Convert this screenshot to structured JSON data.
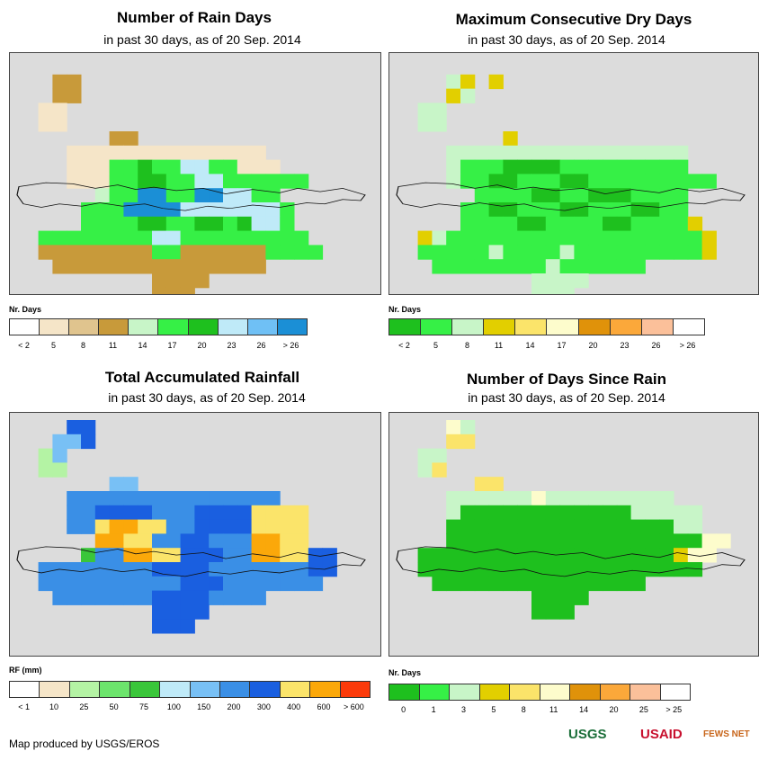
{
  "panels": [
    {
      "title": "Number of Rain Days",
      "subtitle": "in past 30 days, as of 20 Sep. 2014",
      "legend_title": "Nr. Days",
      "legend_colors": [
        "#ffffff",
        "#f5e5c8",
        "#e0c48e",
        "#c89a3a",
        "#c8f5c8",
        "#36f046",
        "#1ec01e",
        "#bfeaf8",
        "#6fc0f5",
        "#1b8fd6"
      ],
      "legend_labels": [
        "< 2",
        "5",
        "8",
        "11",
        "14",
        "17",
        "20",
        "23",
        "26",
        "> 26"
      ],
      "grid": [
        "..........................",
        "...bb.....................",
        "...bb.....................",
        "..aa......................",
        "..aa......................",
        ".......bb.................",
        "....aaaaaaaaaaaaaa........",
        "....aaaffgffhhffaaa.......",
        "....aaaffggffhhffffff.....",
        "......dffiiffiihhff.......",
        ".....fffiiiihhhhhhhf......",
        ".....ffffggffggfghhf......",
        "..ffffffffhhfffffffff.....",
        "..bbbbbbbbffbbbbbbffff....",
        "...bbbbbbbbbbbbbbb........",
        "..........bbbb............",
        "..........bbb............."
      ],
      "key": {
        "a": "#f5e5c8",
        "b": "#c89a3a",
        "d": "#c8f5c8",
        "f": "#36f046",
        "g": "#1ec01e",
        "h": "#bfeaf8",
        "i": "#1b8fd6"
      }
    },
    {
      "title": "Maximum Consecutive Dry Days",
      "subtitle": "in past 30 days, as of 20 Sep. 2014",
      "legend_title": "Nr. Days",
      "legend_colors": [
        "#1ec01e",
        "#36f046",
        "#c8f5c8",
        "#e2cf00",
        "#fbe46a",
        "#fdfccc",
        "#e0920a",
        "#fba83a",
        "#fbc09a",
        "#ffffff"
      ],
      "legend_labels": [
        "< 2",
        "5",
        "8",
        "11",
        "14",
        "17",
        "20",
        "23",
        "26",
        "> 26"
      ],
      "grid": [
        "..........................",
        "....cd.d..................",
        "....dc....................",
        "..cc......................",
        "..cc......................",
        "........d.................",
        "....ccccccccccccccccc.....",
        "....cbbbggggbbbbbbbbb.....",
        "....cbbggbbbggbbbbbbbbb...",
        "......bbbbggbbgggbbbb.....",
        ".....bbggbbbggbbbggbb.....",
        ".....bbbbggbbbbggbbbbd....",
        "..dcbbbbbbbbbbbbbbbbbbd...",
        "..bbbbbcbbbbcbbbbbbbbbd...",
        "...bbbbbbbbcbbbbbb........",
        "..........cccc............",
        "..........ccc............."
      ],
      "key": {
        "b": "#36f046",
        "c": "#c8f5c8",
        "d": "#e2cf00",
        "g": "#1ec01e"
      }
    },
    {
      "title": "Total Accumulated Rainfall",
      "subtitle": "in past 30 days, as of 20 Sep. 2014",
      "legend_title": "RF (mm)",
      "legend_colors": [
        "#ffffff",
        "#f5e5c8",
        "#b4f3a4",
        "#6ce46c",
        "#3ac63a",
        "#bfeaf8",
        "#78c0f5",
        "#3a8fe6",
        "#1a5fe0",
        "#fbe46a",
        "#fba80a",
        "#fb3a0a"
      ],
      "legend_labels": [
        "< 1",
        "10",
        "25",
        "50",
        "75",
        "100",
        "150",
        "200",
        "300",
        "400",
        "600",
        "> 600"
      ],
      "grid": [
        "....ii....................",
        "...ggi....................",
        "..cg......................",
        "..cc......................",
        ".......gg.................",
        "....hhhhhhhhhhhhhhh.......",
        "....hhiiiihhhiiiijjjj.....",
        "....hhjkkjjhhiiiijjjj.....",
        "......kkjjhhiihhhkkjj.....",
        ".....ehhkkjjiiihhkkjjii...",
        "..hhhhhhhhiiiihhhhhhhii...",
        "..hhhhhhhhhhiiihhhhhhh....",
        "...hhhhhhhiiiihhhh........",
        "..........iiii............",
        "..........iii............."
      ],
      "key": {
        "c": "#b4f3a4",
        "e": "#3ac63a",
        "g": "#78c0f5",
        "h": "#3a8fe6",
        "i": "#1a5fe0",
        "j": "#fbe46a",
        "k": "#fba80a"
      }
    },
    {
      "title": "Number of Days Since Rain",
      "subtitle": "in past 30 days, as of 20 Sep. 2014",
      "legend_title": "Nr. Days",
      "legend_colors": [
        "#1ec01e",
        "#36f046",
        "#c8f5c8",
        "#e2cf00",
        "#fbe46a",
        "#fdfccc",
        "#e0920a",
        "#fba83a",
        "#fbc09a",
        "#ffffff"
      ],
      "legend_labels": [
        "0",
        "1",
        "3",
        "5",
        "8",
        "11",
        "14",
        "20",
        "25",
        "> 25"
      ],
      "grid": [
        "....fc....................",
        "....ee....................",
        "..cc......................",
        "..ce......................",
        "......ee..................",
        "....ccccccfccccccccc......",
        "....cggggggggggggccccc....",
        "....ggggggggggggggggcc....",
        "....ggggggggggggggggggff..",
        "..ggggggggggggggggggdff...",
        "..gggggggggggggggggggg....",
        "...ggggggggggggggg........",
        "..........gggg............",
        "..........ggg............."
      ],
      "key": {
        "c": "#c8f5c8",
        "e": "#fbe46a",
        "f": "#fdfccc",
        "g": "#1ec01e",
        "d": "#e2cf00"
      }
    }
  ],
  "footer": {
    "credit": "Map produced by USGS/EROS",
    "logo_usgs": "USGS",
    "logo_usaid": "USAID",
    "logo_fews": "FEWS NET"
  }
}
